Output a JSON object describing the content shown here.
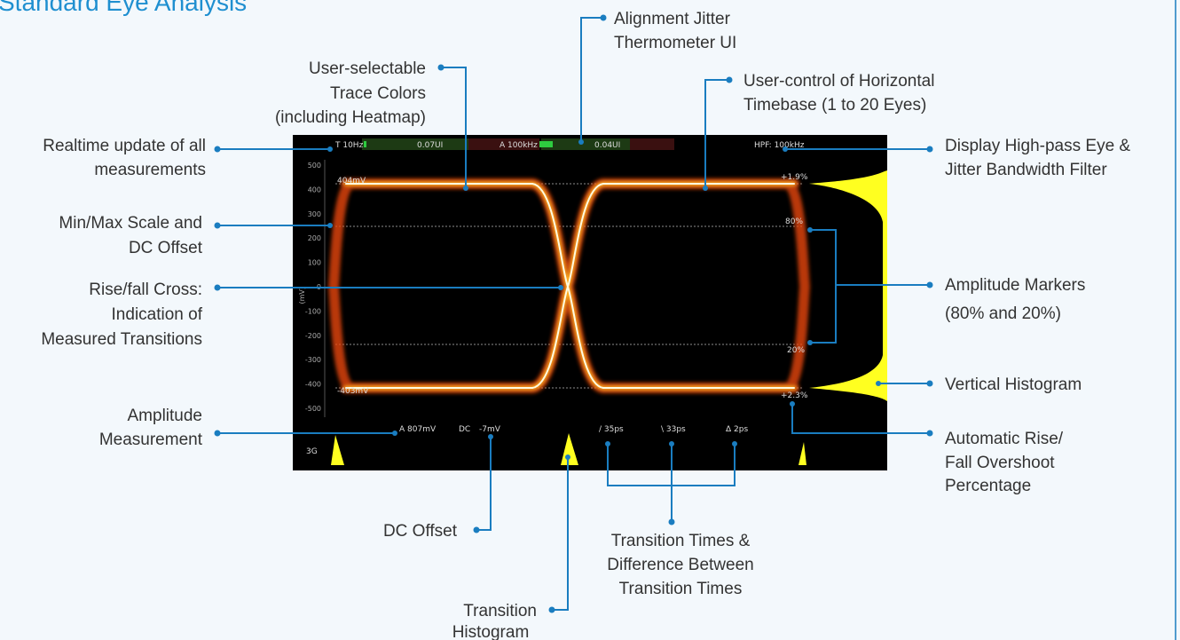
{
  "title": "Standard Eye Analysis",
  "callouts": [
    {
      "lines": [
        "Realtime update of all",
        "measurements"
      ]
    },
    {
      "lines": [
        "Min/Max Scale and",
        "DC Offset"
      ]
    },
    {
      "lines": [
        "Rise/fall Cross:",
        "Indication of",
        "Measured Transitions"
      ]
    },
    {
      "lines": [
        "Amplitude",
        "Measurement"
      ]
    },
    {
      "lines": [
        "User-selectable",
        "Trace Colors",
        "(including Heatmap)"
      ]
    },
    {
      "lines": [
        "Alignment Jitter",
        "Thermometer UI"
      ]
    },
    {
      "lines": [
        "User-control of Horizontal",
        "Timebase (1 to 20 Eyes)"
      ]
    },
    {
      "lines": [
        "Display High-pass Eye &",
        "Jitter Bandwidth Filter"
      ]
    },
    {
      "lines": [
        "Amplitude Markers",
        "(80% and 20%)"
      ]
    },
    {
      "lines": [
        "Vertical Histogram"
      ]
    },
    {
      "lines": [
        "Automatic Rise/",
        "Fall Overshoot",
        "Percentage"
      ]
    },
    {
      "lines": [
        "DC Offset"
      ]
    },
    {
      "lines": [
        "Transition Times &",
        "Difference Between",
        "Transition Times"
      ]
    },
    {
      "lines": [
        "Transition",
        "Histogram"
      ]
    }
  ],
  "screen": {
    "header": [
      "T 10Hz",
      "0.07UI",
      "A 100kHz",
      "0.04UI",
      "HPF: 100kHz"
    ],
    "y_ticks": [
      500,
      400,
      300,
      200,
      100,
      0,
      -100,
      -200,
      -300,
      -400,
      -500
    ],
    "y_unit": "(mV)",
    "markers": [
      "404mV",
      "+1.9%",
      "80%",
      "20%",
      "-403mV",
      "+2.3%"
    ],
    "measurements": [
      "A 807mV",
      "DC",
      "-7mV",
      "/ 35ps",
      "\\ 33ps",
      "Δ 2ps"
    ],
    "rate": "3G"
  }
}
